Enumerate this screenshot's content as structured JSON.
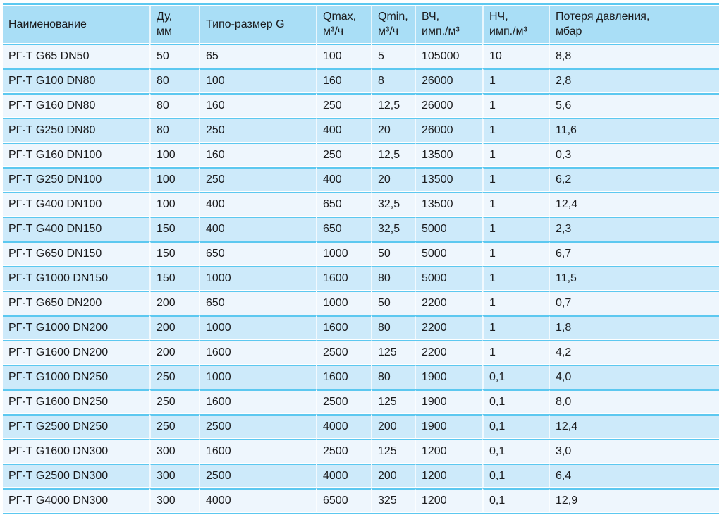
{
  "colors": {
    "header_bg": "#a9def6",
    "row_odd_bg": "#eef6fd",
    "row_even_bg": "#cdeafa",
    "separator_line": "#5cc8f0",
    "text": "#1b1b1d"
  },
  "table": {
    "columns": [
      {
        "id": "name",
        "label_lines": [
          "Наименование"
        ]
      },
      {
        "id": "du",
        "label_lines": [
          "Ду,",
          "мм"
        ]
      },
      {
        "id": "size",
        "label_lines": [
          "Типо-размер G"
        ]
      },
      {
        "id": "qmax",
        "label_lines": [
          "Qmax,",
          "м³/ч"
        ]
      },
      {
        "id": "qmin",
        "label_lines": [
          "Qmin,",
          "м³/ч"
        ]
      },
      {
        "id": "hf",
        "label_lines": [
          "ВЧ,",
          "имп./м³"
        ]
      },
      {
        "id": "lf",
        "label_lines": [
          "НЧ,",
          "имп./м³"
        ]
      },
      {
        "id": "ploss",
        "label_lines": [
          "Потеря давления,",
          "мбар"
        ]
      }
    ],
    "rows": [
      [
        "РГ-Т G65 DN50",
        "50",
        "65",
        "100",
        "5",
        "105000",
        "10",
        "8,8"
      ],
      [
        "РГ-Т G100 DN80",
        "80",
        "100",
        "160",
        "8",
        "26000",
        "1",
        "2,8"
      ],
      [
        "РГ-Т G160 DN80",
        "80",
        "160",
        "250",
        "12,5",
        "26000",
        "1",
        "5,6"
      ],
      [
        "РГ-Т G250 DN80",
        "80",
        "250",
        "400",
        "20",
        "26000",
        "1",
        "11,6"
      ],
      [
        "РГ-Т G160 DN100",
        "100",
        "160",
        "250",
        "12,5",
        "13500",
        "1",
        "0,3"
      ],
      [
        "РГ-Т G250 DN100",
        "100",
        "250",
        "400",
        "20",
        "13500",
        "1",
        "6,2"
      ],
      [
        "РГ-Т G400 DN100",
        "100",
        "400",
        "650",
        "32,5",
        "13500",
        "1",
        "12,4"
      ],
      [
        "РГ-Т G400 DN150",
        "150",
        "400",
        "650",
        "32,5",
        "5000",
        "1",
        "2,3"
      ],
      [
        "РГ-Т G650 DN150",
        "150",
        "650",
        "1000",
        "50",
        "5000",
        "1",
        "6,7"
      ],
      [
        "РГ-Т G1000 DN150",
        "150",
        "1000",
        "1600",
        "80",
        "5000",
        "1",
        "11,5"
      ],
      [
        "РГ-Т G650 DN200",
        "200",
        "650",
        "1000",
        "50",
        "2200",
        "1",
        "0,7"
      ],
      [
        "РГ-Т G1000 DN200",
        "200",
        "1000",
        "1600",
        "80",
        "2200",
        "1",
        "1,8"
      ],
      [
        "РГ-Т G1600 DN200",
        "200",
        "1600",
        "2500",
        "125",
        "2200",
        "1",
        "4,2"
      ],
      [
        "РГ-Т G1000 DN250",
        "250",
        "1000",
        "1600",
        "80",
        "1900",
        "0,1",
        "4,0"
      ],
      [
        "РГ-Т G1600 DN250",
        "250",
        "1600",
        "2500",
        "125",
        "1900",
        "0,1",
        "8,0"
      ],
      [
        "РГ-Т G2500 DN250",
        "250",
        "2500",
        "4000",
        "200",
        "1900",
        "0,1",
        "12,4"
      ],
      [
        "РГ-Т G1600 DN300",
        "300",
        "1600",
        "2500",
        "125",
        "1200",
        "0,1",
        "3,0"
      ],
      [
        "РГ-Т G2500 DN300",
        "300",
        "2500",
        "4000",
        "200",
        "1200",
        "0,1",
        "6,4"
      ],
      [
        "РГ-Т G4000 DN300",
        "300",
        "4000",
        "6500",
        "325",
        "1200",
        "0,1",
        "12,9"
      ]
    ]
  }
}
